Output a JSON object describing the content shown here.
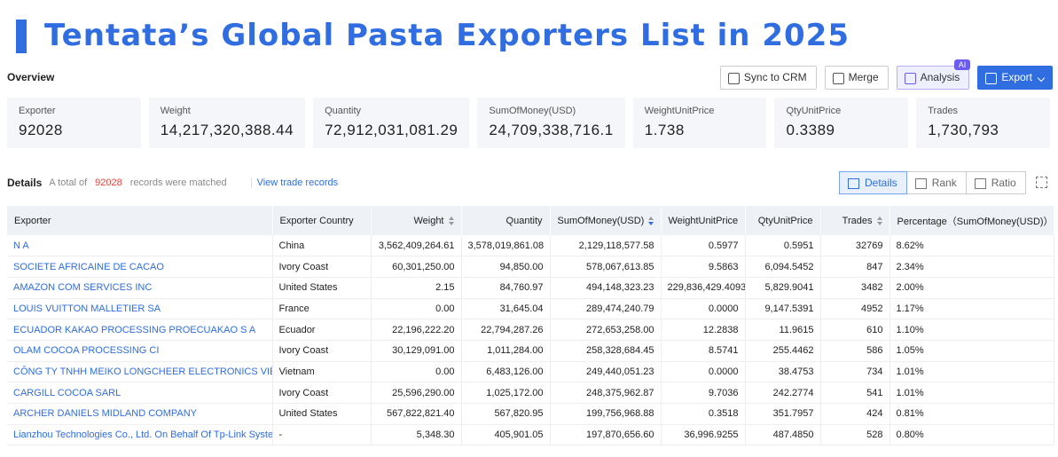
{
  "header": {
    "title": "Tentata’s Global Pasta Exporters List in 2025"
  },
  "overview": {
    "label": "Overview",
    "buttons": [
      "Sync to CRM",
      "Merge",
      "Analysis",
      "Export"
    ],
    "ai_badge": "AI"
  },
  "stats": [
    {
      "label": "Exporter",
      "value": "92028"
    },
    {
      "label": "Weight",
      "value": "14,217,320,388.44"
    },
    {
      "label": "Quantity",
      "value": "72,912,031,081.29"
    },
    {
      "label": "SumOfMoney(USD)",
      "value": "24,709,338,716.1"
    },
    {
      "label": "WeightUnitPrice",
      "value": "1.738"
    },
    {
      "label": "QtyUnitPrice",
      "value": "0.3389"
    },
    {
      "label": "Trades",
      "value": "1,730,793"
    }
  ],
  "details": {
    "label": "Details",
    "total_prefix": "A total of",
    "total": "92028",
    "total_suffix": "records were matched",
    "view_link": "View trade records",
    "tabs": [
      "Details",
      "Rank",
      "Ratio"
    ]
  },
  "table": {
    "columns": [
      "Exporter",
      "Exporter Country",
      "Weight",
      "Quantity",
      "SumOfMoney(USD)",
      "WeightUnitPrice",
      "QtyUnitPrice",
      "Trades",
      "Percentage（SumOfMoney(USD)）"
    ],
    "rows": [
      [
        "N A",
        "China",
        "3,562,409,264.61",
        "3,578,019,861.08",
        "2,129,118,577.58",
        "0.5977",
        "0.5951",
        "32769",
        "8.62%"
      ],
      [
        "SOCIETE AFRICAINE DE CACAO",
        "Ivory Coast",
        "60,301,250.00",
        "94,850.00",
        "578,067,613.85",
        "9.5863",
        "6,094.5452",
        "847",
        "2.34%"
      ],
      [
        "AMAZON COM SERVICES INC",
        "United States",
        "2.15",
        "84,760.97",
        "494,148,323.23",
        "229,836,429.4093",
        "5,829.9041",
        "3482",
        "2.00%"
      ],
      [
        "LOUIS VUITTON MALLETIER SA",
        "France",
        "0.00",
        "31,645.04",
        "289,474,240.79",
        "0.0000",
        "9,147.5391",
        "4952",
        "1.17%"
      ],
      [
        "ECUADOR KAKAO PROCESSING PROECUAKAO S A",
        "Ecuador",
        "22,196,222.20",
        "22,794,287.26",
        "272,653,258.00",
        "12.2838",
        "11.9615",
        "610",
        "1.10%"
      ],
      [
        "OLAM COCOA PROCESSING CI",
        "Ivory Coast",
        "30,129,091.00",
        "1,011,284.00",
        "258,328,684.45",
        "8.5741",
        "255.4462",
        "586",
        "1.05%"
      ],
      [
        "CÔNG TY TNHH MEIKO LONGCHEER ELECTRONICS VIỆT NAM",
        "Vietnam",
        "0.00",
        "6,483,126.00",
        "249,440,051.23",
        "0.0000",
        "38.4753",
        "734",
        "1.01%"
      ],
      [
        "CARGILL COCOA SARL",
        "Ivory Coast",
        "25,596,290.00",
        "1,025,172.00",
        "248,375,962.87",
        "9.7036",
        "242.2774",
        "541",
        "1.01%"
      ],
      [
        "ARCHER DANIELS MIDLAND COMPANY",
        "United States",
        "567,822,821.40",
        "567,820.95",
        "199,756,968.88",
        "0.3518",
        "351.7957",
        "424",
        "0.81%"
      ],
      [
        "Lianzhou Technologies Co., Ltd. On Behalf Of Tp-Link Systems ...",
        "-",
        "5,348.30",
        "405,901.05",
        "197,870,656.60",
        "36,996.9255",
        "487.4850",
        "528",
        "0.80%"
      ]
    ]
  }
}
